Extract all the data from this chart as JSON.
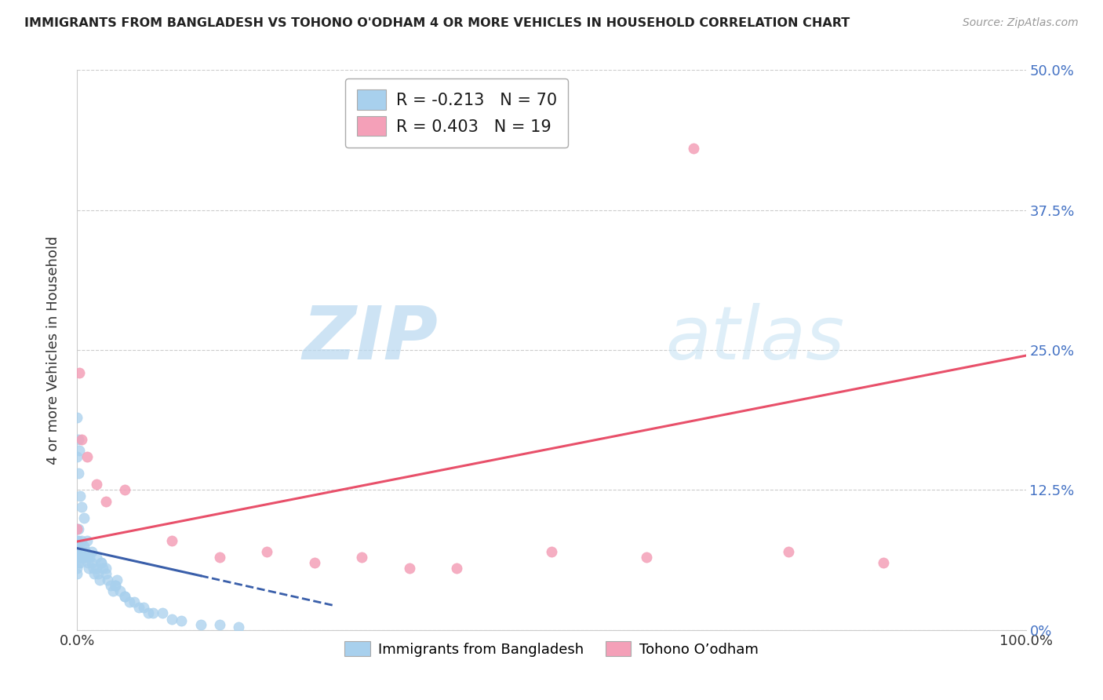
{
  "title": "IMMIGRANTS FROM BANGLADESH VS TOHONO O'ODHAM 4 OR MORE VEHICLES IN HOUSEHOLD CORRELATION CHART",
  "source": "Source: ZipAtlas.com",
  "ylabel_label": "4 or more Vehicles in Household",
  "legend_blue_label": "Immigrants from Bangladesh",
  "legend_pink_label": "Tohono O’odham",
  "R_blue": -0.213,
  "N_blue": 70,
  "R_pink": 0.403,
  "N_pink": 19,
  "blue_color": "#a8d0ed",
  "pink_color": "#f4a0b8",
  "blue_line_color": "#3a5faa",
  "pink_line_color": "#e8506a",
  "xlim": [
    0.0,
    1.0
  ],
  "ylim": [
    0.0,
    0.5
  ],
  "ytick_positions": [
    0.0,
    0.125,
    0.25,
    0.375,
    0.5
  ],
  "ytick_labels": [
    "0%",
    "12.5%",
    "25.0%",
    "37.5%",
    "50.0%"
  ],
  "xtick_positions": [
    0.0,
    0.25,
    0.5,
    0.75,
    1.0
  ],
  "xtick_labels": [
    "0.0%",
    "",
    "",
    "",
    "100.0%"
  ],
  "blue_x": [
    0.0,
    0.0,
    0.0,
    0.0,
    0.0,
    0.0,
    0.0,
    0.001,
    0.001,
    0.001,
    0.001,
    0.002,
    0.002,
    0.003,
    0.003,
    0.004,
    0.004,
    0.005,
    0.005,
    0.006,
    0.007,
    0.008,
    0.009,
    0.01,
    0.011,
    0.012,
    0.013,
    0.015,
    0.017,
    0.018,
    0.02,
    0.022,
    0.024,
    0.025,
    0.027,
    0.03,
    0.032,
    0.035,
    0.038,
    0.04,
    0.042,
    0.045,
    0.05,
    0.055,
    0.06,
    0.065,
    0.07,
    0.075,
    0.08,
    0.09,
    0.1,
    0.11,
    0.13,
    0.15,
    0.17,
    0.0,
    0.001,
    0.002,
    0.0,
    0.001,
    0.003,
    0.005,
    0.007,
    0.01,
    0.015,
    0.02,
    0.025,
    0.03,
    0.04,
    0.05
  ],
  "blue_y": [
    0.065,
    0.07,
    0.075,
    0.08,
    0.09,
    0.055,
    0.05,
    0.07,
    0.08,
    0.09,
    0.06,
    0.065,
    0.075,
    0.07,
    0.06,
    0.065,
    0.07,
    0.065,
    0.08,
    0.07,
    0.075,
    0.065,
    0.07,
    0.065,
    0.06,
    0.055,
    0.065,
    0.06,
    0.055,
    0.05,
    0.055,
    0.05,
    0.045,
    0.06,
    0.055,
    0.05,
    0.045,
    0.04,
    0.035,
    0.04,
    0.045,
    0.035,
    0.03,
    0.025,
    0.025,
    0.02,
    0.02,
    0.015,
    0.015,
    0.015,
    0.01,
    0.008,
    0.005,
    0.005,
    0.003,
    0.19,
    0.17,
    0.16,
    0.155,
    0.14,
    0.12,
    0.11,
    0.1,
    0.08,
    0.07,
    0.065,
    0.06,
    0.055,
    0.04,
    0.03
  ],
  "pink_x": [
    0.0,
    0.002,
    0.005,
    0.01,
    0.02,
    0.03,
    0.05,
    0.1,
    0.15,
    0.2,
    0.25,
    0.3,
    0.35,
    0.4,
    0.5,
    0.6,
    0.65,
    0.75,
    0.85
  ],
  "pink_y": [
    0.09,
    0.23,
    0.17,
    0.155,
    0.13,
    0.115,
    0.125,
    0.08,
    0.065,
    0.07,
    0.06,
    0.065,
    0.055,
    0.055,
    0.07,
    0.065,
    0.43,
    0.07,
    0.06
  ],
  "pink_line_x0": 0.0,
  "pink_line_y0": 0.079,
  "pink_line_x1": 1.0,
  "pink_line_y1": 0.245,
  "blue_line_x0": 0.0,
  "blue_line_y0": 0.073,
  "blue_line_x1": 0.27,
  "blue_line_y1": 0.022
}
